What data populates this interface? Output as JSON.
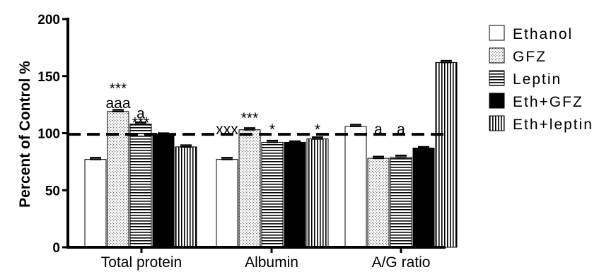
{
  "chart_data": {
    "type": "bar",
    "title": "",
    "xlabel": "",
    "ylabel": "Percent of Control %",
    "ylim": [
      0,
      200
    ],
    "yticks": [
      0,
      50,
      100,
      150,
      200
    ],
    "categories": [
      "Total protein",
      "Albumin",
      "A/G ratio"
    ],
    "series": [
      {
        "name": "Ethanol",
        "pattern": "white",
        "values": [
          77,
          77,
          106
        ],
        "errors": [
          1.5,
          1.5,
          1.5
        ]
      },
      {
        "name": "GFZ",
        "pattern": "dots",
        "values": [
          119,
          103,
          78
        ],
        "errors": [
          1.5,
          1.5,
          1.5
        ]
      },
      {
        "name": "Leptin",
        "pattern": "horizontal-lines",
        "values": [
          108,
          92,
          79
        ],
        "errors": [
          1.5,
          1.5,
          1.5
        ]
      },
      {
        "name": "Eth+GFZ",
        "pattern": "black",
        "values": [
          99,
          92,
          87
        ],
        "errors": [
          1,
          1,
          1
        ]
      },
      {
        "name": "Eth+leptin",
        "pattern": "vertical-lines",
        "values": [
          88,
          95,
          162
        ],
        "errors": [
          1.5,
          1.5,
          1.5
        ]
      }
    ],
    "reference_line": {
      "value": 99,
      "style": "dashed"
    },
    "legend": "right",
    "grid": false,
    "annotations": [
      {
        "text": "***",
        "category": 0,
        "series": 1,
        "y": 140
      },
      {
        "text": "aaa",
        "category": 0,
        "series": 1,
        "y": 127
      },
      {
        "text": "a",
        "category": 0,
        "series": 2,
        "y": 118
      },
      {
        "text": "***",
        "category": 0,
        "series": 2,
        "y": 110
      },
      {
        "text": "xxx",
        "category": 1,
        "series": 0,
        "y": 104
      },
      {
        "text": "***",
        "category": 1,
        "series": 1,
        "y": 114
      },
      {
        "text": "*",
        "category": 1,
        "series": 2,
        "y": 104
      },
      {
        "text": "*",
        "category": 1,
        "series": 4,
        "y": 104
      },
      {
        "text": "a",
        "category": 2,
        "series": 1,
        "y": 104
      },
      {
        "text": "a",
        "category": 2,
        "series": 2,
        "y": 104
      }
    ]
  }
}
